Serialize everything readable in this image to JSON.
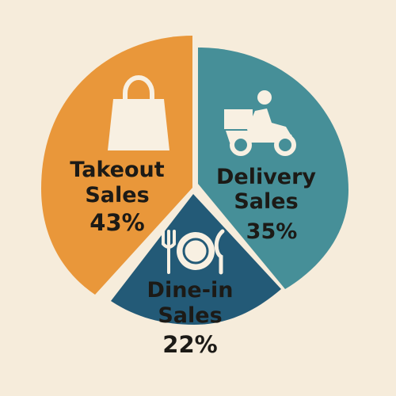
{
  "chart_data": {
    "type": "pie",
    "title": "",
    "slices": [
      {
        "label_line1": "Takeout",
        "label_line2": "Sales",
        "value": 43,
        "value_label": "43%",
        "color": "#e9973a",
        "icon": "shopping-bag-icon"
      },
      {
        "label_line1": "Delivery",
        "label_line2": "Sales",
        "value": 35,
        "value_label": "35%",
        "color": "#468f98",
        "icon": "delivery-scooter-icon"
      },
      {
        "label_line1": "Dine-in",
        "label_line2": "Sales",
        "value": 22,
        "value_label": "22%",
        "color": "#235a77",
        "icon": "plate-cutlery-icon"
      }
    ]
  },
  "colors": {
    "background": "#f6ecdb",
    "separator": "#f6ecdb",
    "icon": "#f8f0e2",
    "text": "#1c1a16"
  }
}
